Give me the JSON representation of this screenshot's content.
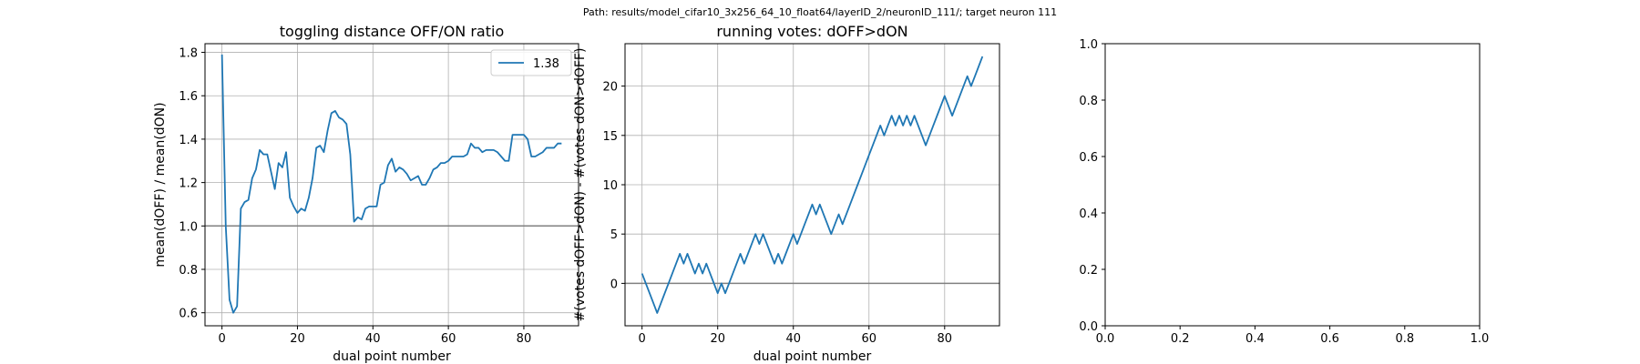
{
  "header": {
    "path_text": "Path: results/model_cifar10_3x256_64_10_float64/layerID_2/neuronID_111/; target neuron 111"
  },
  "colors": {
    "series": "#1f77b4",
    "refline": "#808080",
    "grid": "#b0b0b0",
    "axes": "#000000"
  },
  "chart_data": [
    {
      "type": "line",
      "title": "toggling distance OFF/ON ratio",
      "xlabel": "dual point number",
      "ylabel": "mean(dOFF) / mean(dON)",
      "xlim": [
        -4.5,
        94.5
      ],
      "ylim": [
        0.54,
        1.84
      ],
      "xticks": [
        0,
        20,
        40,
        60,
        80
      ],
      "yticks": [
        0.6,
        0.8,
        1.0,
        1.2,
        1.4,
        1.6,
        1.8
      ],
      "grid": true,
      "reference_line_y": 1.0,
      "legend": {
        "placement": "upper right",
        "entries": [
          "1.38"
        ]
      },
      "series": [
        {
          "name": "1.38",
          "x": [
            0,
            1,
            2,
            3,
            4,
            5,
            6,
            7,
            8,
            9,
            10,
            11,
            12,
            13,
            14,
            15,
            16,
            17,
            18,
            19,
            20,
            21,
            22,
            23,
            24,
            25,
            26,
            27,
            28,
            29,
            30,
            31,
            32,
            33,
            34,
            35,
            36,
            37,
            38,
            39,
            40,
            41,
            42,
            43,
            44,
            45,
            46,
            47,
            48,
            49,
            50,
            51,
            52,
            53,
            54,
            55,
            56,
            57,
            58,
            59,
            60,
            61,
            62,
            63,
            64,
            65,
            66,
            67,
            68,
            69,
            70,
            71,
            72,
            73,
            74,
            75,
            76,
            77,
            78,
            79,
            80,
            81,
            82,
            83,
            84,
            85,
            86,
            87,
            88,
            89,
            90
          ],
          "y": [
            1.79,
            1.0,
            0.66,
            0.6,
            0.63,
            1.08,
            1.11,
            1.12,
            1.22,
            1.26,
            1.35,
            1.33,
            1.33,
            1.25,
            1.17,
            1.29,
            1.27,
            1.34,
            1.13,
            1.09,
            1.06,
            1.08,
            1.07,
            1.13,
            1.22,
            1.36,
            1.37,
            1.34,
            1.44,
            1.52,
            1.53,
            1.5,
            1.49,
            1.47,
            1.33,
            1.02,
            1.04,
            1.03,
            1.08,
            1.09,
            1.09,
            1.09,
            1.19,
            1.2,
            1.28,
            1.31,
            1.25,
            1.27,
            1.26,
            1.24,
            1.21,
            1.22,
            1.23,
            1.19,
            1.19,
            1.22,
            1.26,
            1.27,
            1.29,
            1.29,
            1.3,
            1.32,
            1.32,
            1.32,
            1.32,
            1.33,
            1.38,
            1.36,
            1.36,
            1.34,
            1.35,
            1.35,
            1.35,
            1.34,
            1.32,
            1.3,
            1.3,
            1.42,
            1.42,
            1.42,
            1.42,
            1.4,
            1.32,
            1.32,
            1.33,
            1.34,
            1.36,
            1.36,
            1.36,
            1.38,
            1.38
          ]
        }
      ]
    },
    {
      "type": "line",
      "title": "running votes: dOFF>dON",
      "xlabel": "dual point number",
      "ylabel": "#(votes dOFF>dON) - #(votes dON>dOFF)",
      "xlim": [
        -4.5,
        94.5
      ],
      "ylim": [
        -4.3,
        24.3
      ],
      "xticks": [
        0,
        20,
        40,
        60,
        80
      ],
      "yticks": [
        0,
        5,
        10,
        15,
        20
      ],
      "grid": true,
      "reference_line_y": 0,
      "series": [
        {
          "x": [
            0,
            1,
            2,
            3,
            4,
            5,
            6,
            7,
            8,
            9,
            10,
            11,
            12,
            13,
            14,
            15,
            16,
            17,
            18,
            19,
            20,
            21,
            22,
            23,
            24,
            25,
            26,
            27,
            28,
            29,
            30,
            31,
            32,
            33,
            34,
            35,
            36,
            37,
            38,
            39,
            40,
            41,
            42,
            43,
            44,
            45,
            46,
            47,
            48,
            49,
            50,
            51,
            52,
            53,
            54,
            55,
            56,
            57,
            58,
            59,
            60,
            61,
            62,
            63,
            64,
            65,
            66,
            67,
            68,
            69,
            70,
            71,
            72,
            73,
            74,
            75,
            76,
            77,
            78,
            79,
            80,
            81,
            82,
            83,
            84,
            85,
            86,
            87,
            88,
            89,
            90
          ],
          "y": [
            1,
            0,
            -1,
            -2,
            -3,
            -2,
            -1,
            0,
            1,
            2,
            3,
            2,
            3,
            2,
            1,
            2,
            1,
            2,
            1,
            0,
            -1,
            0,
            -1,
            0,
            1,
            2,
            3,
            2,
            3,
            4,
            5,
            4,
            5,
            4,
            3,
            2,
            3,
            2,
            3,
            4,
            5,
            4,
            5,
            6,
            7,
            8,
            7,
            8,
            7,
            6,
            5,
            6,
            7,
            6,
            7,
            8,
            9,
            10,
            11,
            12,
            13,
            14,
            15,
            16,
            15,
            16,
            17,
            16,
            17,
            16,
            17,
            16,
            17,
            16,
            15,
            14,
            15,
            16,
            17,
            18,
            19,
            18,
            17,
            18,
            19,
            20,
            21,
            20,
            21,
            22,
            23
          ]
        }
      ]
    },
    {
      "type": "line",
      "title": "",
      "xlabel": "",
      "ylabel": "",
      "xlim": [
        0,
        1
      ],
      "ylim": [
        0,
        1
      ],
      "xticks": [
        0.0,
        0.2,
        0.4,
        0.6,
        0.8,
        1.0
      ],
      "yticks": [
        0.0,
        0.2,
        0.4,
        0.6,
        0.8,
        1.0
      ],
      "tick_labels": [
        "0.0",
        "0.2",
        "0.4",
        "0.6",
        "0.8",
        "1.0"
      ],
      "grid": false,
      "series": []
    }
  ]
}
